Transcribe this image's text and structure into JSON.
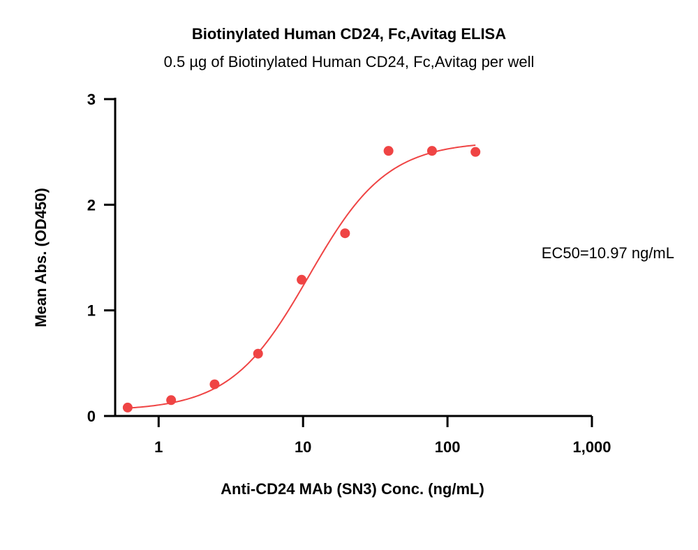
{
  "chart_data": {
    "type": "scatter",
    "title": "Biotinylated Human CD24, Fc,Avitag ELISA",
    "subtitle": "0.5 µg of Biotinylated Human CD24, Fc,Avitag per well",
    "xlabel": "Anti-CD24 MAb (SN3) Conc. (ng/mL)",
    "ylabel": "Mean Abs. (OD450)",
    "xscale": "log",
    "xlim": [
      0.5,
      1000
    ],
    "ylim": [
      0,
      3
    ],
    "xticks": [
      1,
      10,
      100,
      1000
    ],
    "xtick_labels": [
      "1",
      "10",
      "100",
      "1,000"
    ],
    "yticks": [
      0,
      1,
      2,
      3
    ],
    "ytick_labels": [
      "0",
      "1",
      "2",
      "3"
    ],
    "color": "#ef4444",
    "series": [
      {
        "x": [
          0.61,
          1.22,
          2.44,
          4.88,
          9.77,
          19.53,
          39.06,
          78.13,
          156.25
        ],
        "y": [
          0.08,
          0.15,
          0.3,
          0.59,
          1.29,
          1.73,
          2.51,
          2.51,
          2.5
        ]
      }
    ],
    "fit": {
      "type": "4PL",
      "bottom": 0.05,
      "top": 2.6,
      "ec50": 10.97,
      "hill": 1.6,
      "x_range": [
        0.61,
        156.25
      ]
    },
    "annotation": "EC50=10.97 ng/mL",
    "grid": false
  }
}
